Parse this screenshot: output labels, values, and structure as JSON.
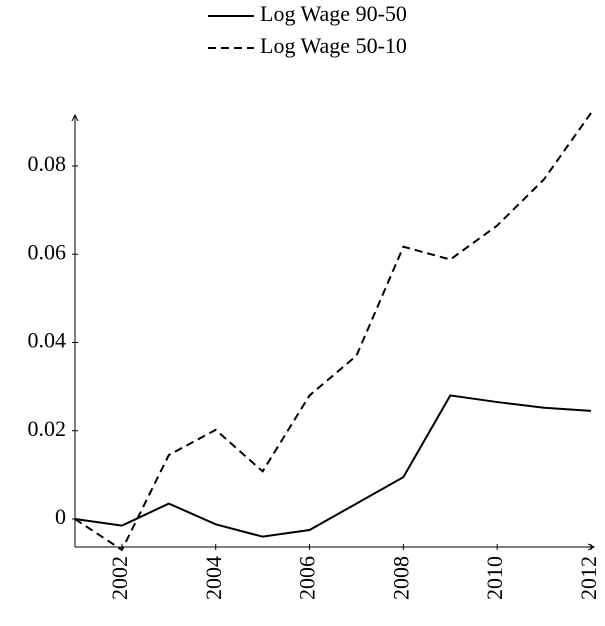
{
  "chart_data": {
    "type": "line",
    "x": [
      2001,
      2002,
      2003,
      2004,
      2005,
      2006,
      2007,
      2008,
      2009,
      2010,
      2011,
      2012
    ],
    "series": [
      {
        "name": "Log Wage 90-50",
        "color": "#000000",
        "dash": "solid",
        "values": [
          0,
          -0.0015,
          0.0035,
          -0.0012,
          -0.004,
          -0.0025,
          0.0035,
          0.0095,
          0.028,
          0.0265,
          0.0252,
          0.0245
        ]
      },
      {
        "name": "Log Wage 50-10",
        "color": "#000000",
        "dash": "dashed",
        "values": [
          0,
          -0.007,
          0.0145,
          0.0202,
          0.0108,
          0.028,
          0.037,
          0.0617,
          0.0588,
          0.0665,
          0.077,
          0.092
        ]
      }
    ],
    "xlim": [
      2001,
      2012
    ],
    "xticks": [
      2002,
      2004,
      2006,
      2008,
      2010,
      2012
    ],
    "ylim": [
      -0.0065,
      0.092
    ],
    "yticks": [
      0,
      0.02,
      0.04,
      0.06,
      0.08
    ],
    "legend": "top"
  }
}
